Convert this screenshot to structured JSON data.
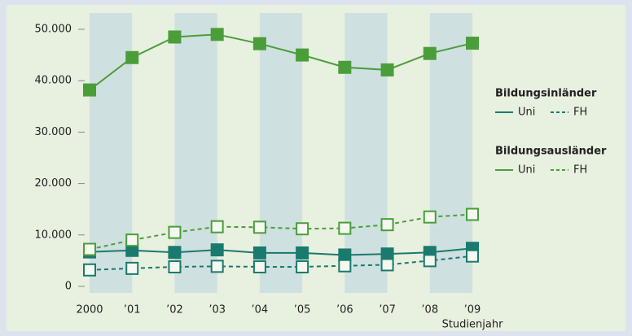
{
  "chart_data": {
    "type": "line",
    "categories": [
      "2000",
      "’01",
      "’02",
      "’03",
      "’04",
      "’05",
      "’06",
      "’07",
      "’08",
      "’09"
    ],
    "xlabel": "Studienjahr",
    "ylim": [
      0,
      50000
    ],
    "yticks": [
      0,
      {
        "value": 10000,
        "label": "10.000"
      },
      {
        "value": 20000,
        "label": "20.000"
      },
      {
        "value": 30000,
        "label": "30.000"
      },
      {
        "value": 40000,
        "label": "40.000"
      },
      {
        "value": 50000,
        "label": "50.000"
      }
    ],
    "groups": [
      {
        "name": "Bildungsinländer",
        "color": "#1a7a6e",
        "series": [
          {
            "name": "Uni",
            "dash": false,
            "values": [
              6700,
              7000,
              6600,
              7100,
              6500,
              6500,
              6100,
              6300,
              6600,
              7400
            ]
          },
          {
            "name": "FH",
            "dash": true,
            "values": [
              3200,
              3500,
              3800,
              3900,
              3800,
              3800,
              4000,
              4200,
              5000,
              5900
            ]
          }
        ]
      },
      {
        "name": "Bildungsausländer",
        "color": "#4a9e3a",
        "series": [
          {
            "name": "Uni",
            "dash": false,
            "values": [
              38200,
              44500,
              48500,
              49000,
              47200,
              45000,
              42600,
              42100,
              45300,
              47300
            ]
          },
          {
            "name": "FH",
            "dash": true,
            "values": [
              7200,
              9000,
              10500,
              11600,
              11500,
              11200,
              11300,
              12000,
              13500,
              14000
            ]
          }
        ]
      }
    ]
  }
}
